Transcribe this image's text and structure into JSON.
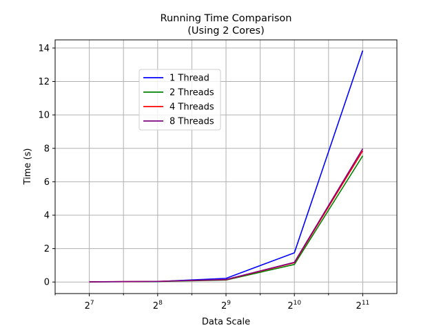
{
  "chart_data": {
    "type": "line",
    "title_line1": "Running Time Comparison",
    "title_line2": "(Using 2 Cores)",
    "xlabel": "Data Scale",
    "ylabel": "Time (s)",
    "x_scale": "log2",
    "x": [
      128,
      256,
      512,
      1024,
      2048
    ],
    "x_tick_labels": [
      {
        "base": "2",
        "exp": "7"
      },
      {
        "base": "2",
        "exp": "8"
      },
      {
        "base": "2",
        "exp": "9"
      },
      {
        "base": "2",
        "exp": "10"
      },
      {
        "base": "2",
        "exp": "11"
      }
    ],
    "xlim": [
      90.5,
      2896.3
    ],
    "ylim": [
      -0.69,
      14.49
    ],
    "y_ticks": [
      0,
      2,
      4,
      6,
      8,
      10,
      12,
      14
    ],
    "grid": true,
    "legend_position": "upper-center-left",
    "series": [
      {
        "name": "1 Thread",
        "color": "#0000ff",
        "values": [
          0.01,
          0.03,
          0.22,
          1.75,
          13.85
        ]
      },
      {
        "name": "2 Threads",
        "color": "#008000",
        "values": [
          0.01,
          0.03,
          0.12,
          1.05,
          7.55
        ]
      },
      {
        "name": "4 Threads",
        "color": "#ff0000",
        "values": [
          0.01,
          0.04,
          0.14,
          1.15,
          7.85
        ]
      },
      {
        "name": "8 Threads",
        "color": "#800080",
        "values": [
          0.01,
          0.04,
          0.15,
          1.18,
          7.98
        ]
      }
    ]
  }
}
